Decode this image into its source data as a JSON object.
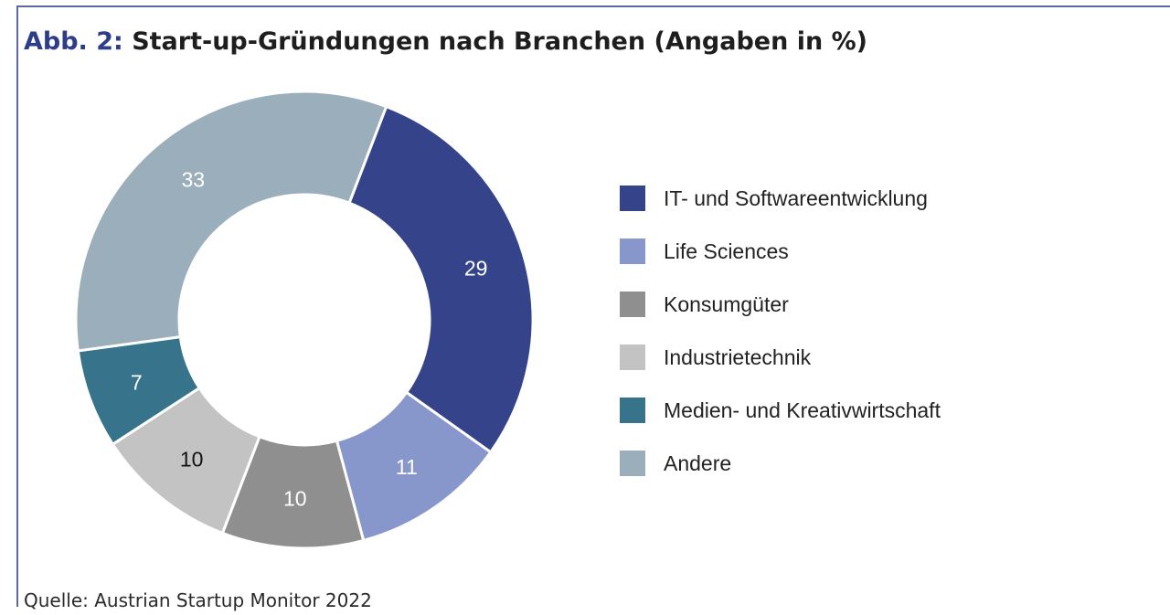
{
  "title": {
    "prefix": "Abb. 2:",
    "text": "Start-up-Gründungen nach Branchen (Angaben in %)"
  },
  "source": "Quelle: Austrian Startup Monitor 2022",
  "colors": {
    "frame": "#5a6aa0",
    "title_prefix": "#2e3d8a"
  },
  "chart_data": {
    "type": "pie",
    "subtype": "donut",
    "title": "Start-up-Gründungen nach Branchen (Angaben in %)",
    "legend_position": "right",
    "slices": [
      {
        "label": "IT- und Softwareentwicklung",
        "value": 29,
        "color": "#35448a",
        "label_color": "#ffffff"
      },
      {
        "label": "Life Sciences",
        "value": 11,
        "color": "#8797cc",
        "label_color": "#ffffff"
      },
      {
        "label": "Konsumgüter",
        "value": 10,
        "color": "#8f8f8f",
        "label_color": "#ffffff"
      },
      {
        "label": "Industrietechnik",
        "value": 10,
        "color": "#c3c3c3",
        "label_color": "#111111"
      },
      {
        "label": "Medien- und Kreativwirtschaft",
        "value": 7,
        "color": "#37738a",
        "label_color": "#ffffff"
      },
      {
        "label": "Andere",
        "value": 33,
        "color": "#9baebb",
        "label_color": "#ffffff"
      }
    ]
  }
}
